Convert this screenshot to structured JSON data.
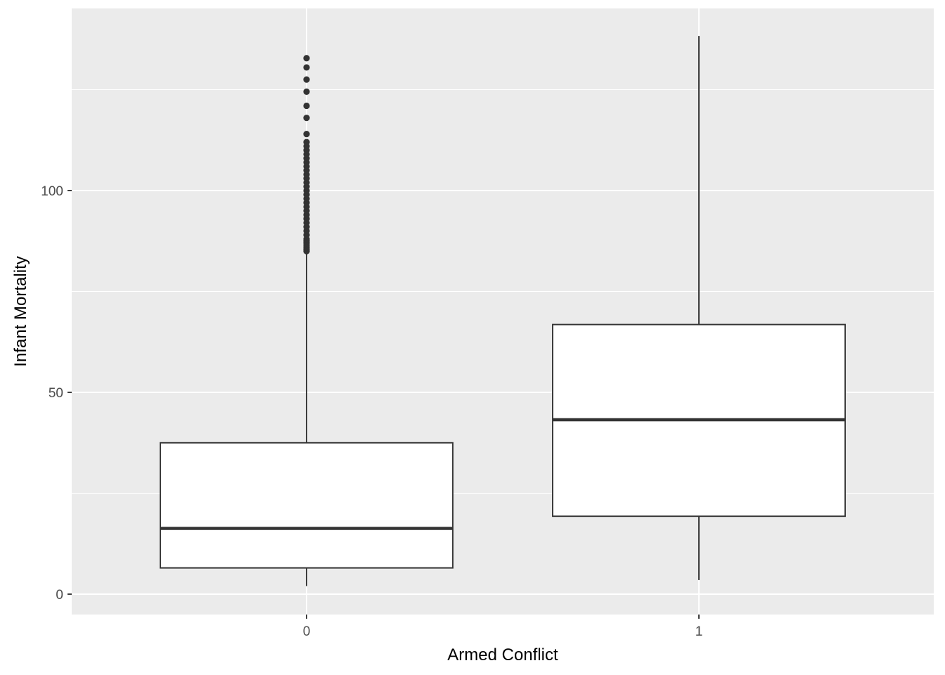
{
  "chart_data": {
    "type": "box",
    "xlabel": "Armed Conflict",
    "ylabel": "Infant Mortality",
    "ylim": [
      -5,
      145
    ],
    "y_ticks": [
      0,
      50,
      100
    ],
    "y_minor_ticks": [
      25,
      75,
      125
    ],
    "grid": true,
    "categories": [
      "0",
      "1"
    ],
    "boxes": [
      {
        "category": "0",
        "whisker_low": 2,
        "q1": 6.5,
        "median": 16.3,
        "q3": 37.5,
        "whisker_high": 84.5,
        "outliers": [
          85,
          85.5,
          86,
          86.5,
          87,
          87.5,
          88,
          89,
          90,
          91,
          92,
          93,
          94,
          95,
          96,
          97,
          98,
          99,
          100,
          101,
          102,
          103,
          104,
          105,
          106,
          107,
          108,
          109,
          110,
          111,
          112,
          114,
          118,
          121,
          124.5,
          127.5,
          130.5,
          132.8
        ]
      },
      {
        "category": "1",
        "whisker_low": 3.5,
        "q1": 19.3,
        "median": 43.2,
        "q3": 66.8,
        "whisker_high": 138.3,
        "outliers": []
      }
    ]
  },
  "colors": {
    "panel": "#ebebeb",
    "grid": "#ffffff",
    "box_fill": "#ffffff",
    "box_stroke": "#333333",
    "tick": "#333333",
    "tick_label": "#4d4d4d",
    "axis_title": "#000000"
  }
}
